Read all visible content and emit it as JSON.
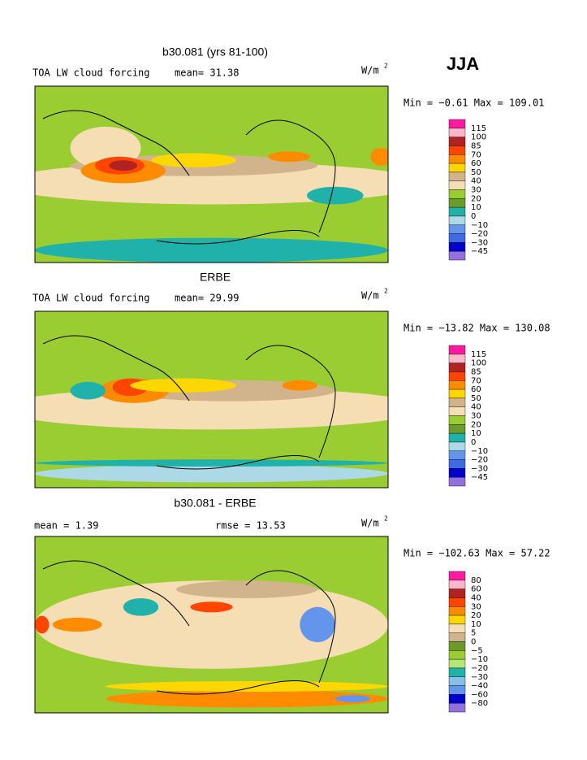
{
  "header": {
    "season": "JJA"
  },
  "panels": [
    {
      "title": "b30.081 (yrs 81-100)",
      "label": "TOA LW cloud forcing",
      "stat": "mean=  31.38",
      "units": "W/m",
      "units_sup": "2",
      "range": "Min =  −0.61 Max = 109.01",
      "colorbar": {
        "labels": [
          "115",
          "100",
          "85",
          "70",
          "60",
          "50",
          "40",
          "30",
          "20",
          "10",
          "0",
          "−10",
          "−20",
          "−30",
          "−45"
        ],
        "colors": [
          "#ff1aa0",
          "#ffb6c8",
          "#b22222",
          "#ff4500",
          "#ff8c00",
          "#ffd700",
          "#d2b48c",
          "#f5deb3",
          "#9acd32",
          "#6b9b2a",
          "#20b2aa",
          "#add8e6",
          "#6495ed",
          "#4169e1",
          "#0000cd",
          "#9370db"
        ]
      }
    },
    {
      "title": "ERBE",
      "label": "TOA LW cloud forcing",
      "stat": "mean=  29.99",
      "units": "W/m",
      "units_sup": "2",
      "range": "Min = −13.82 Max = 130.08",
      "colorbar": {
        "labels": [
          "115",
          "100",
          "85",
          "70",
          "60",
          "50",
          "40",
          "30",
          "20",
          "10",
          "0",
          "−10",
          "−20",
          "−30",
          "−45"
        ],
        "colors": [
          "#ff1aa0",
          "#ffb6c8",
          "#b22222",
          "#ff4500",
          "#ff8c00",
          "#ffd700",
          "#d2b48c",
          "#f5deb3",
          "#9acd32",
          "#6b9b2a",
          "#20b2aa",
          "#add8e6",
          "#6495ed",
          "#4169e1",
          "#0000cd",
          "#9370db"
        ]
      }
    },
    {
      "title": "b30.081 - ERBE",
      "stat": "mean =   1.39",
      "stat2": "rmse =  13.53",
      "units": "W/m",
      "units_sup": "2",
      "range": "Min = −102.63 Max =  57.22",
      "colorbar": {
        "labels": [
          "80",
          "60",
          "40",
          "30",
          "20",
          "10",
          "5",
          "0",
          "−5",
          "−10",
          "−20",
          "−30",
          "−40",
          "−60",
          "−80"
        ],
        "colors": [
          "#ff1aa0",
          "#ffb6c8",
          "#b22222",
          "#ff4500",
          "#ff8c00",
          "#ffd700",
          "#f5deb3",
          "#d2b48c",
          "#6b9b2a",
          "#9acd32",
          "#b4e67a",
          "#20b2aa",
          "#87bfe6",
          "#6495ed",
          "#0000cd",
          "#9370db"
        ]
      }
    }
  ]
}
